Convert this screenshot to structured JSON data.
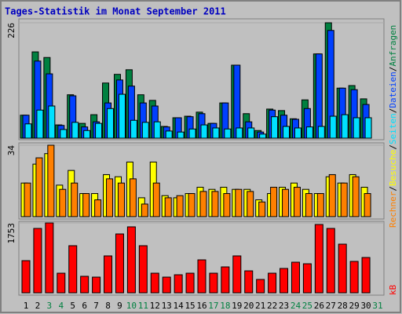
{
  "chart_data": [
    {
      "type": "bar",
      "title": "Tages-Statistik im Monat September 2011",
      "categories": [
        "1",
        "2",
        "3",
        "4",
        "5",
        "6",
        "7",
        "8",
        "9",
        "10",
        "11",
        "12",
        "13",
        "14",
        "15",
        "16",
        "17",
        "18",
        "19",
        "20",
        "21",
        "22",
        "23",
        "24",
        "25",
        "26",
        "27",
        "28",
        "29",
        "30",
        "31"
      ],
      "category_colors": [
        "#000000",
        "#000000",
        "#008040",
        "#008040",
        "#000000",
        "#000000",
        "#000000",
        "#000000",
        "#000000",
        "#008040",
        "#008040",
        "#000000",
        "#000000",
        "#000000",
        "#000000",
        "#000000",
        "#008040",
        "#008040",
        "#000000",
        "#000000",
        "#000000",
        "#000000",
        "#000000",
        "#008040",
        "#008040",
        "#000000",
        "#000000",
        "#000000",
        "#000000",
        "#000000",
        "#008040"
      ],
      "ylim": [
        0,
        226
      ],
      "yticks": [
        226
      ],
      "series": [
        {
          "name": "Anfragen",
          "color": "#008040",
          "values": [
            45,
            169,
            158,
            26,
            85,
            29,
            46,
            108,
            125,
            134,
            85,
            74,
            23,
            40,
            43,
            51,
            29,
            69,
            143,
            48,
            15,
            57,
            54,
            38,
            75,
            165,
            226,
            98,
            103,
            77,
            null
          ]
        },
        {
          "name": "Dateien",
          "color": "#0040ff",
          "values": [
            45,
            151,
            126,
            25,
            83,
            22,
            32,
            69,
            114,
            102,
            69,
            63,
            22,
            40,
            42,
            48,
            29,
            69,
            143,
            32,
            12,
            55,
            45,
            37,
            58,
            165,
            211,
            98,
            95,
            66,
            null
          ]
        },
        {
          "name": "Seiten",
          "color": "#00e0ff",
          "values": [
            28,
            55,
            63,
            17,
            31,
            15,
            29,
            58,
            86,
            35,
            31,
            32,
            14,
            12,
            18,
            26,
            20,
            18,
            20,
            20,
            8,
            42,
            23,
            20,
            22,
            23,
            43,
            46,
            40,
            40,
            null
          ]
        }
      ]
    },
    {
      "type": "bar",
      "ylim": [
        0,
        34
      ],
      "yticks": [
        34
      ],
      "series": [
        {
          "name": "Besuche",
          "color": "#ffff00",
          "values": [
            16,
            25,
            30,
            15,
            22,
            11,
            11,
            20,
            19,
            26,
            9,
            26,
            10,
            9,
            11,
            14,
            13,
            14,
            13,
            13,
            8,
            11,
            14,
            16,
            13,
            11,
            19,
            16,
            20,
            14,
            null
          ]
        },
        {
          "name": "Rechner",
          "color": "#ff8000",
          "values": [
            16,
            28,
            34,
            13,
            16,
            11,
            8,
            18,
            16,
            18,
            6,
            16,
            9,
            10,
            11,
            12,
            12,
            11,
            13,
            12,
            7,
            14,
            13,
            14,
            11,
            11,
            20,
            16,
            19,
            11,
            null
          ]
        }
      ]
    },
    {
      "type": "bar",
      "ylim": [
        0,
        1753
      ],
      "yticks": [
        1753
      ],
      "series": [
        {
          "name": "kB",
          "color": "#ff0000",
          "values": [
            807,
            1615,
            1753,
            492,
            1182,
            414,
            394,
            926,
            1477,
            1655,
            1182,
            492,
            394,
            453,
            492,
            827,
            492,
            650,
            926,
            551,
            335,
            492,
            611,
            768,
            729,
            1714,
            1615,
            1221,
            788,
            886,
            null
          ]
        }
      ]
    }
  ],
  "legend_separator": "/"
}
